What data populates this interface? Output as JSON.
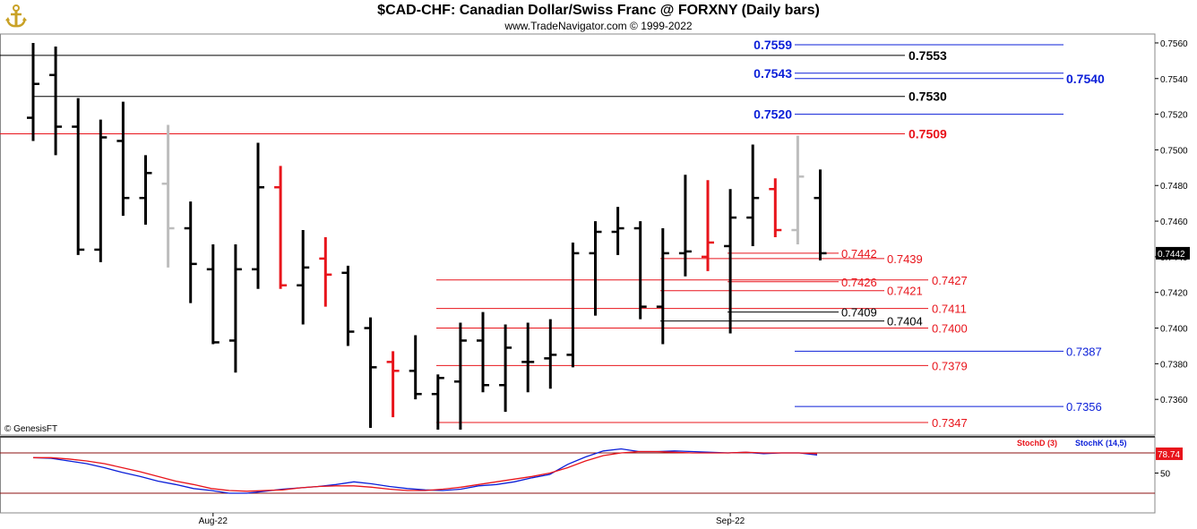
{
  "header": {
    "title": "$CAD-CHF:  Canadian Dollar/Swiss Franc @ FORXNY  (Daily bars)",
    "subtitle": "www.TradeNavigator.com © 1999-2022"
  },
  "credit": "© GenesisFT",
  "colors": {
    "bull": "#000000",
    "red": "#e8141b",
    "gray": "#bdbdbd",
    "blue": "#0b1fd8"
  },
  "chart_data": {
    "type": "ohlc",
    "price_axis": {
      "ylim": [
        0.734,
        0.7565
      ],
      "ticks": [
        "0.7560",
        "0.7540",
        "0.7520",
        "0.7500",
        "0.7480",
        "0.7460",
        "0.7440",
        "0.7420",
        "0.7400",
        "0.7380",
        "0.7360"
      ],
      "last_price": "0.7442"
    },
    "x_labels": [
      {
        "text": "Aug-22",
        "bar": 8
      },
      {
        "text": "Sep-22",
        "bar": 31
      }
    ],
    "bars": [
      {
        "o": 0.7518,
        "h": 0.756,
        "l": 0.7505,
        "c": 0.7537,
        "color": "black"
      },
      {
        "o": 0.7542,
        "h": 0.7558,
        "l": 0.7497,
        "c": 0.7513,
        "color": "black"
      },
      {
        "o": 0.7513,
        "h": 0.7529,
        "l": 0.7441,
        "c": 0.7444,
        "color": "black"
      },
      {
        "o": 0.7444,
        "h": 0.7517,
        "l": 0.7437,
        "c": 0.7507,
        "color": "black"
      },
      {
        "o": 0.7505,
        "h": 0.7527,
        "l": 0.7463,
        "c": 0.7473,
        "color": "black"
      },
      {
        "o": 0.7473,
        "h": 0.7497,
        "l": 0.7458,
        "c": 0.7487,
        "color": "black"
      },
      {
        "o": 0.7481,
        "h": 0.7514,
        "l": 0.7434,
        "c": 0.7456,
        "color": "gray"
      },
      {
        "o": 0.7456,
        "h": 0.7471,
        "l": 0.7414,
        "c": 0.7436,
        "color": "black"
      },
      {
        "o": 0.7433,
        "h": 0.7447,
        "l": 0.7391,
        "c": 0.7392,
        "color": "black"
      },
      {
        "o": 0.7393,
        "h": 0.7447,
        "l": 0.7375,
        "c": 0.7433,
        "color": "black"
      },
      {
        "o": 0.7433,
        "h": 0.7504,
        "l": 0.7422,
        "c": 0.7479,
        "color": "black"
      },
      {
        "o": 0.7479,
        "h": 0.7491,
        "l": 0.7422,
        "c": 0.7424,
        "color": "red"
      },
      {
        "o": 0.7424,
        "h": 0.7455,
        "l": 0.7402,
        "c": 0.7434,
        "color": "black"
      },
      {
        "o": 0.7439,
        "h": 0.7451,
        "l": 0.7412,
        "c": 0.743,
        "color": "red"
      },
      {
        "o": 0.7431,
        "h": 0.7435,
        "l": 0.739,
        "c": 0.7398,
        "color": "black"
      },
      {
        "o": 0.74,
        "h": 0.7406,
        "l": 0.7344,
        "c": 0.7378,
        "color": "black"
      },
      {
        "o": 0.7381,
        "h": 0.7387,
        "l": 0.735,
        "c": 0.7376,
        "color": "red"
      },
      {
        "o": 0.7376,
        "h": 0.7396,
        "l": 0.736,
        "c": 0.7363,
        "color": "black"
      },
      {
        "o": 0.7363,
        "h": 0.7374,
        "l": 0.7343,
        "c": 0.7372,
        "color": "black"
      },
      {
        "o": 0.737,
        "h": 0.7403,
        "l": 0.7343,
        "c": 0.7393,
        "color": "black"
      },
      {
        "o": 0.7393,
        "h": 0.7409,
        "l": 0.7364,
        "c": 0.7368,
        "color": "black"
      },
      {
        "o": 0.7368,
        "h": 0.7402,
        "l": 0.7353,
        "c": 0.7389,
        "color": "black"
      },
      {
        "o": 0.7381,
        "h": 0.7403,
        "l": 0.7364,
        "c": 0.7381,
        "color": "black"
      },
      {
        "o": 0.7383,
        "h": 0.7405,
        "l": 0.7366,
        "c": 0.7385,
        "color": "black"
      },
      {
        "o": 0.7385,
        "h": 0.7448,
        "l": 0.7378,
        "c": 0.7442,
        "color": "black"
      },
      {
        "o": 0.7442,
        "h": 0.746,
        "l": 0.7407,
        "c": 0.7454,
        "color": "black"
      },
      {
        "o": 0.7454,
        "h": 0.7468,
        "l": 0.7441,
        "c": 0.7456,
        "color": "black"
      },
      {
        "o": 0.7456,
        "h": 0.746,
        "l": 0.7405,
        "c": 0.7412,
        "color": "black"
      },
      {
        "o": 0.7412,
        "h": 0.7456,
        "l": 0.7391,
        "c": 0.7442,
        "color": "black"
      },
      {
        "o": 0.7442,
        "h": 0.7486,
        "l": 0.7429,
        "c": 0.7443,
        "color": "black"
      },
      {
        "o": 0.744,
        "h": 0.7483,
        "l": 0.7432,
        "c": 0.7448,
        "color": "red"
      },
      {
        "o": 0.7446,
        "h": 0.7478,
        "l": 0.7397,
        "c": 0.7462,
        "color": "black"
      },
      {
        "o": 0.7462,
        "h": 0.7503,
        "l": 0.7446,
        "c": 0.7473,
        "color": "black"
      },
      {
        "o": 0.7478,
        "h": 0.7484,
        "l": 0.7451,
        "c": 0.7455,
        "color": "red"
      },
      {
        "o": 0.7455,
        "h": 0.7508,
        "l": 0.7447,
        "c": 0.7485,
        "color": "gray"
      },
      {
        "o": 0.7473,
        "h": 0.7489,
        "l": 0.7438,
        "c": 0.7442,
        "color": "black"
      }
    ],
    "levels": [
      {
        "label": "0.7559",
        "value": 0.7559,
        "color": "blue",
        "style": "bold",
        "side": "left"
      },
      {
        "label": "0.7553",
        "value": 0.7553,
        "color": "black",
        "style": "bold",
        "side": "right"
      },
      {
        "label": "0.7543",
        "value": 0.7543,
        "color": "blue",
        "style": "bold",
        "side": "left"
      },
      {
        "label": "0.7540",
        "value": 0.754,
        "color": "blue",
        "style": "bold",
        "side": "far"
      },
      {
        "label": "0.7530",
        "value": 0.753,
        "color": "black",
        "style": "bold",
        "side": "right"
      },
      {
        "label": "0.7520",
        "value": 0.752,
        "color": "blue",
        "style": "bold",
        "side": "left"
      },
      {
        "label": "0.7509",
        "value": 0.7509,
        "color": "red",
        "style": "bold",
        "side": "right"
      },
      {
        "label": "0.7442",
        "value": 0.7442,
        "color": "red",
        "style": "normal",
        "side": "near"
      },
      {
        "label": "0.7439",
        "value": 0.7439,
        "color": "red",
        "style": "normal",
        "side": "near2"
      },
      {
        "label": "0.7427",
        "value": 0.7427,
        "color": "red",
        "style": "normal",
        "side": "mid"
      },
      {
        "label": "0.7426",
        "value": 0.7426,
        "color": "red",
        "style": "normal",
        "side": "near"
      },
      {
        "label": "0.7421",
        "value": 0.7421,
        "color": "red",
        "style": "normal",
        "side": "near2"
      },
      {
        "label": "0.7411",
        "value": 0.7411,
        "color": "red",
        "style": "normal",
        "side": "mid"
      },
      {
        "label": "0.7409",
        "value": 0.7409,
        "color": "black",
        "style": "normal",
        "side": "near"
      },
      {
        "label": "0.7404",
        "value": 0.7404,
        "color": "black",
        "style": "normal",
        "side": "near2"
      },
      {
        "label": "0.7400",
        "value": 0.74,
        "color": "red",
        "style": "normal",
        "side": "mid"
      },
      {
        "label": "0.7387",
        "value": 0.7387,
        "color": "blue",
        "style": "normal",
        "side": "far"
      },
      {
        "label": "0.7379",
        "value": 0.7379,
        "color": "red",
        "style": "normal",
        "side": "mid"
      },
      {
        "label": "0.7356",
        "value": 0.7356,
        "color": "blue",
        "style": "normal",
        "side": "far"
      },
      {
        "label": "0.7347",
        "value": 0.7347,
        "color": "red",
        "style": "normal",
        "side": "mid"
      }
    ],
    "stochastic": {
      "legend": [
        "StochD (3)",
        "StochK (14,5)"
      ],
      "ylim": [
        0,
        100
      ],
      "level_lines": [
        80,
        20
      ],
      "tick": "50",
      "last_value": "78.74",
      "stoch_d": [
        73,
        73,
        71,
        68,
        64,
        58,
        52,
        45,
        38,
        33,
        27,
        24,
        23,
        24,
        25,
        28,
        30,
        31,
        31,
        29,
        26,
        24,
        24,
        26,
        29,
        33,
        37,
        41,
        45,
        50,
        58,
        68,
        76,
        80,
        82,
        82,
        81,
        80,
        80,
        80,
        81,
        80,
        80,
        80,
        79
      ],
      "stoch_k": [
        73,
        72,
        68,
        64,
        58,
        51,
        45,
        38,
        33,
        27,
        24,
        20,
        20,
        23,
        26,
        28,
        30,
        33,
        37,
        34,
        30,
        27,
        25,
        24,
        26,
        31,
        33,
        37,
        43,
        48,
        63,
        74,
        83,
        86,
        82,
        82,
        83,
        82,
        81,
        80,
        81,
        79,
        80,
        80,
        77
      ]
    }
  }
}
